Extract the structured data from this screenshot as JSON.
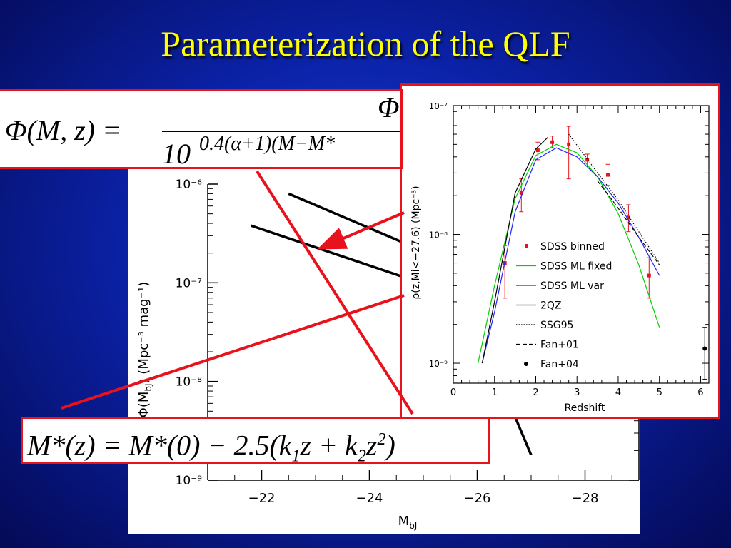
{
  "slide": {
    "title": "Parameterization of the QLF",
    "colors": {
      "background": "#0b22a8",
      "title": "#ffff00",
      "highlight": "#e8121c"
    }
  },
  "equations": {
    "phi_lhs": "Φ(M, z) =",
    "phi_numerator": "Φ",
    "phi_denominator_base": "10",
    "phi_denominator_exp": "0.4(α+1)(M−M*",
    "mstar": "M*(z) = M*(0) − 2.5(k",
    "mstar_k1": "1",
    "mstar_mid": "z + k",
    "mstar_k2": "2",
    "mstar_z": "z",
    "mstar_sq": "2",
    "mstar_end": ")"
  },
  "chart_data": [
    {
      "type": "line",
      "name": "luminosity-function",
      "y_scale": "log",
      "ylim": [
        1e-09,
        1e-06
      ],
      "xlim": [
        -21,
        -29
      ],
      "x_ticks": [
        -22,
        -24,
        -26,
        -28
      ],
      "x_tick_labels": [
        "−22",
        "−24",
        "−26",
        "−28"
      ],
      "y_ticks": [
        1e-06,
        1e-07,
        1e-08,
        1e-09
      ],
      "y_tick_labels": [
        "10⁻⁶",
        "10⁻⁷",
        "10⁻⁸",
        "10⁻⁹"
      ],
      "xlabel": "M",
      "xlabel_sub": "bJ",
      "ylabel_main": "Φ(M",
      "ylabel_sub": "bJ",
      "ylabel_units": ")  (Mpc⁻³ mag⁻¹)",
      "series": [
        {
          "x": [
            -22.5,
            -25.5,
            -27.0
          ],
          "y": [
            8e-07,
            1.6e-07,
            1.8e-09
          ]
        },
        {
          "x": [
            -21.8,
            -25.2
          ],
          "y": [
            3.8e-07,
            9e-08
          ]
        }
      ]
    },
    {
      "type": "line",
      "name": "space-density",
      "y_scale": "log",
      "ylim": [
        7e-10,
        1e-07
      ],
      "xlim": [
        0,
        6.2
      ],
      "x_ticks": [
        0,
        1,
        2,
        3,
        4,
        5,
        6
      ],
      "x_tick_labels": [
        "0",
        "1",
        "2",
        "3",
        "4",
        "5",
        "6"
      ],
      "y_ticks": [
        1e-07,
        1e-08,
        1e-09
      ],
      "y_tick_labels": [
        "10⁻⁷",
        "10⁻⁸",
        "10⁻⁹"
      ],
      "xlabel": "Redshift",
      "ylabel": "ρ(z,Mi<−27.6) (Mpc⁻³)",
      "legend": [
        {
          "label": "SDSS binned",
          "style": "square",
          "color": "#e8121c"
        },
        {
          "label": "SDSS ML fixed",
          "style": "line",
          "color": "#00d000"
        },
        {
          "label": "SDSS ML var",
          "style": "line",
          "color": "#2222ff"
        },
        {
          "label": "2QZ",
          "style": "line",
          "color": "#000000"
        },
        {
          "label": "SSG95",
          "style": "dotted",
          "color": "#000000"
        },
        {
          "label": "Fan+01",
          "style": "dashed",
          "color": "#000000"
        },
        {
          "label": "Fan+04",
          "style": "dot",
          "color": "#000000"
        }
      ],
      "series": [
        {
          "name": "SDSS binned",
          "x": [
            1.25,
            1.65,
            2.05,
            2.4,
            2.8,
            3.25,
            3.75,
            4.25,
            4.75
          ],
          "y": [
            6e-09,
            2.1e-08,
            4.5e-08,
            5.2e-08,
            5e-08,
            3.8e-08,
            2.9e-08,
            1.35e-08,
            4.8e-09
          ],
          "err_lo": [
            3.2e-09,
            1.5e-08,
            3.8e-08,
            4.7e-08,
            2.7e-08,
            3.4e-08,
            2.4e-08,
            1.05e-08,
            3.2e-09
          ],
          "err_hi": [
            8.2e-09,
            2.7e-08,
            5.2e-08,
            5.8e-08,
            6.9e-08,
            4.2e-08,
            3.5e-08,
            1.7e-08,
            6.6e-09
          ]
        },
        {
          "name": "SDSS ML fixed",
          "x": [
            0.6,
            1.0,
            1.5,
            2.0,
            2.5,
            3.0,
            3.5,
            4.0,
            4.5,
            5.0
          ],
          "y": [
            1e-09,
            4e-09,
            1.9e-08,
            4.1e-08,
            5e-08,
            4.3e-08,
            2.8e-08,
            1.45e-08,
            5.8e-09,
            1.9e-09
          ]
        },
        {
          "name": "SDSS ML var",
          "x": [
            0.7,
            1.0,
            1.5,
            2.0,
            2.5,
            3.0,
            3.5,
            4.0,
            4.5,
            5.0
          ],
          "y": [
            1e-09,
            2.5e-09,
            1.5e-08,
            3.8e-08,
            4.7e-08,
            4e-08,
            2.8e-08,
            1.75e-08,
            9.5e-09,
            4.8e-09
          ]
        },
        {
          "name": "2QZ",
          "x": [
            0.7,
            1.0,
            1.5,
            2.0,
            2.3
          ],
          "y": [
            1e-09,
            3e-09,
            2.1e-08,
            4.6e-08,
            5.7e-08
          ]
        },
        {
          "name": "SSG95",
          "x": [
            2.8,
            3.5,
            4.0,
            4.5,
            5.0
          ],
          "y": [
            6e-08,
            3e-08,
            1.85e-08,
            1.05e-08,
            6e-09
          ]
        },
        {
          "name": "Fan+01",
          "x": [
            3.5,
            4.0,
            4.5,
            5.0
          ],
          "y": [
            2.6e-08,
            1.6e-08,
            9.5e-09,
            5.8e-09
          ]
        },
        {
          "name": "Fan+04",
          "x": [
            6.1
          ],
          "y": [
            1.3e-09
          ],
          "err_lo": [
            7.5e-10
          ],
          "err_hi": [
            1.9e-09
          ]
        }
      ]
    }
  ]
}
